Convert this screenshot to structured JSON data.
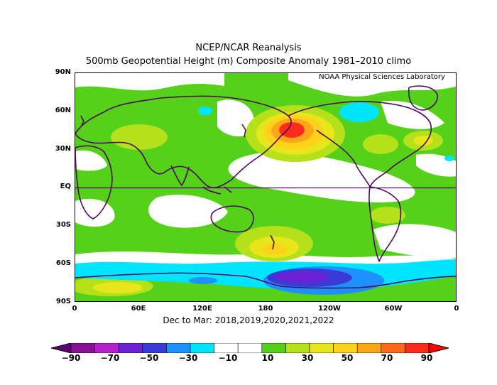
{
  "title": {
    "line1": "NCEP/NCAR Reanalysis",
    "line2": "500mb Geopotential Height (m) Composite Anomaly 1981–2010 climo"
  },
  "credit": "NOAA Physical Sciences Laboratory",
  "subtitle": "Dec to Mar: 2018,2019,2020,2021,2022",
  "lat_labels": [
    "90N",
    "60N",
    "30N",
    "EQ",
    "30S",
    "60S",
    "90S"
  ],
  "lon_labels": [
    "0",
    "60E",
    "120E",
    "180",
    "120W",
    "60W",
    "0"
  ],
  "colorbar": {
    "labels": [
      "−90",
      "−70",
      "−50",
      "−30",
      "−10",
      "10",
      "30",
      "50",
      "70",
      "90"
    ],
    "colors": [
      "#5c0070",
      "#8a0f99",
      "#b81fcc",
      "#6a22d4",
      "#3a3ad8",
      "#1e90ff",
      "#00e5ff",
      "#ffffff",
      "#ffffff",
      "#56d11a",
      "#b4e11a",
      "#e6e61a",
      "#ffd21a",
      "#ffa51a",
      "#ff6a1a",
      "#ff2b1a",
      "#ff0000"
    ]
  },
  "map_colors": {
    "land_outline": "#4b0a5a",
    "base": "#56d11a",
    "neutral": "#ffffff",
    "pos_light": "#b4e11a",
    "pos_mid": "#e6e61a",
    "pos_high": "#ffd21a",
    "pos_orange": "#ffa51a",
    "pos_red": "#ff2b1a",
    "neg_cyan": "#00e5ff",
    "neg_blue": "#1e90ff",
    "neg_indigo": "#3a3ad8",
    "neg_purple": "#6a22d4"
  }
}
